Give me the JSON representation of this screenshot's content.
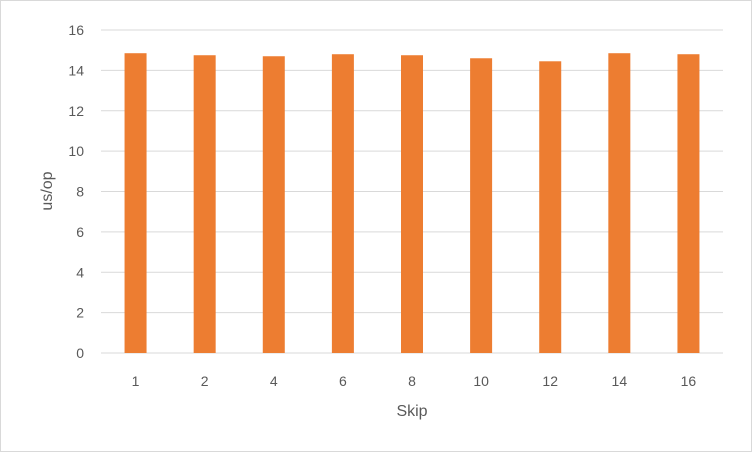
{
  "chart_data": {
    "type": "bar",
    "title": "",
    "xlabel": "Skip",
    "ylabel": "us/op",
    "categories": [
      "1",
      "2",
      "4",
      "6",
      "8",
      "10",
      "12",
      "14",
      "16"
    ],
    "values": [
      14.85,
      14.75,
      14.7,
      14.8,
      14.75,
      14.6,
      14.45,
      14.85,
      14.8
    ],
    "ylim": [
      0,
      16
    ],
    "yticks": [
      0,
      2,
      4,
      6,
      8,
      10,
      12,
      14,
      16
    ],
    "grid": true,
    "legend": "none",
    "colors": {
      "bar": "#ED7D31",
      "grid": "#d9d9d9",
      "text": "#595959"
    }
  }
}
